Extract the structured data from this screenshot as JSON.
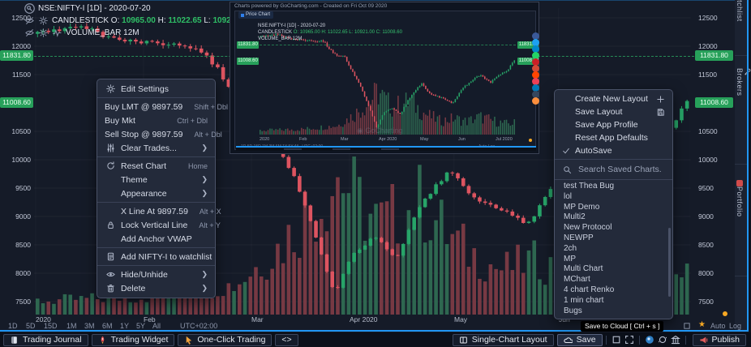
{
  "colors": {
    "accent": "#2196f3",
    "green_tag": "#27a05a",
    "candle_up": "#27a468",
    "candle_down": "#dd5460",
    "vol_up": "#2f6b52",
    "vol_down": "#7c3b44",
    "orange": "#f7a823"
  },
  "legend": {
    "symbol_line": "NSE:NIFTY-I [1D] - 2020-07-20",
    "study1_parts": [
      [
        "CANDLESTICK",
        "w"
      ],
      [
        "O:",
        "l"
      ],
      [
        "10965.00",
        "g"
      ],
      [
        "H:",
        "l"
      ],
      [
        "11022.65",
        "g"
      ],
      [
        "L:",
        "l"
      ],
      [
        "10921.00",
        "g"
      ],
      [
        "C:",
        "l"
      ],
      [
        "11008.60",
        "g"
      ]
    ],
    "study2": "VOLUME_BAR 12M"
  },
  "axis": {
    "ticks": [
      {
        "label": "12500",
        "price": 12500
      },
      {
        "label": "12000",
        "price": 12000
      },
      {
        "label": "11500",
        "price": 11500
      },
      {
        "label": "10500",
        "price": 10500
      },
      {
        "label": "10000",
        "price": 10000
      },
      {
        "label": "9500",
        "price": 9500
      },
      {
        "label": "9000",
        "price": 9000
      },
      {
        "label": "8500",
        "price": 8500
      },
      {
        "label": "8000",
        "price": 8000
      },
      {
        "label": "7500",
        "price": 7500
      }
    ],
    "tags": [
      {
        "label": "11831.80",
        "price": 11831.8
      },
      {
        "label": "11008.60",
        "price": 11008.6
      }
    ]
  },
  "x_axis": [
    {
      "label": "2020",
      "f": 0.0
    },
    {
      "label": "Feb",
      "f": 0.165
    },
    {
      "label": "Mar",
      "f": 0.33
    },
    {
      "label": "Apr 2020",
      "f": 0.48
    },
    {
      "label": "May",
      "f": 0.64
    },
    {
      "label": "Jun",
      "f": 0.8
    }
  ],
  "series": {
    "anchors": [
      [
        0,
        12180
      ],
      [
        8,
        12370
      ],
      [
        16,
        12100
      ],
      [
        20,
        12080
      ],
      [
        30,
        12000
      ],
      [
        36,
        11300
      ],
      [
        40,
        11250
      ],
      [
        44,
        10400
      ],
      [
        48,
        9600
      ],
      [
        52,
        8500
      ],
      [
        55,
        7610
      ],
      [
        58,
        8300
      ],
      [
        62,
        8650
      ],
      [
        66,
        8250
      ],
      [
        70,
        9100
      ],
      [
        76,
        9850
      ],
      [
        80,
        9300
      ],
      [
        85,
        9150
      ],
      [
        90,
        8850
      ],
      [
        95,
        9600
      ],
      [
        100,
        10100
      ],
      [
        104,
        10250
      ],
      [
        108,
        9900
      ],
      [
        112,
        10300
      ],
      [
        116,
        10550
      ],
      [
        119,
        11008.6
      ]
    ],
    "volume_anchors": [
      [
        0,
        18
      ],
      [
        20,
        24
      ],
      [
        36,
        40
      ],
      [
        44,
        90
      ],
      [
        50,
        140
      ],
      [
        55,
        190
      ],
      [
        58,
        150
      ],
      [
        62,
        120
      ],
      [
        66,
        135
      ],
      [
        70,
        150
      ],
      [
        74,
        110
      ],
      [
        78,
        85
      ],
      [
        84,
        60
      ],
      [
        90,
        72
      ],
      [
        96,
        58
      ],
      [
        102,
        78
      ],
      [
        108,
        62
      ],
      [
        114,
        48
      ],
      [
        119,
        52
      ]
    ],
    "count": 120
  },
  "footer": {
    "ranges": [
      "1D",
      "5D",
      "15D",
      "1M",
      "3M",
      "6M",
      "1Y",
      "5Y",
      "All"
    ],
    "timezone": "UTC+02:00",
    "auto_label": "Auto",
    "log_label": "Log",
    "star": "★"
  },
  "context_menu": {
    "sections": [
      [
        {
          "icon": "gear",
          "label": "Edit Settings"
        }
      ],
      [
        {
          "label": "Buy LMT @ 9897.59",
          "shortcut": "Shift + Dbl"
        },
        {
          "label": "Buy Mkt",
          "shortcut": "Ctrl + Dbl"
        },
        {
          "label": "Sell Stop @ 9897.59",
          "shortcut": "Alt + Dbl"
        },
        {
          "icon": "sliders",
          "label": "Clear Trades...",
          "submenu": true
        }
      ],
      [
        {
          "icon": "refresh",
          "label": "Reset Chart",
          "shortcut": "Home"
        },
        {
          "label": "Theme",
          "submenu": true,
          "indent": true
        },
        {
          "label": "Appearance",
          "submenu": true,
          "indent": true
        }
      ],
      [
        {
          "label": "X Line At 9897.59",
          "shortcut": "Alt + X",
          "indent": true
        },
        {
          "icon": "lock",
          "label": "Lock Vertical Line",
          "shortcut": "Alt + Y"
        },
        {
          "label": "Add Anchor VWAP",
          "indent": true
        }
      ],
      [
        {
          "icon": "fileplus",
          "label": "Add NIFTY-I to watchlist"
        }
      ],
      [
        {
          "icon": "eye",
          "label": "Hide/Unhide",
          "submenu": true
        },
        {
          "icon": "trash",
          "label": "Delete",
          "submenu": true
        }
      ]
    ]
  },
  "layout_menu": {
    "items": [
      {
        "label": "Create New Layout",
        "right": "plus"
      },
      {
        "label": "Save Layout",
        "right": "floppy"
      },
      {
        "label": "Save App Profile"
      },
      {
        "label": "Reset App Defaults"
      },
      {
        "label": "AutoSave",
        "check": true
      }
    ],
    "search_placeholder": "Search Saved Charts.",
    "saved_charts": [
      "test Thea Bug",
      "lol",
      "MP Demo",
      "Multi2",
      "New Protocol",
      "NEWPP",
      "2ch",
      "MP",
      "Multi Chart",
      "MChart",
      "4 chart Renko",
      "1 min chart",
      "Bugs"
    ]
  },
  "popup": {
    "title": "Charts powered by GoCharting.com - Created on Fri Oct 09 2020",
    "tab_label": "Price Chart",
    "legend_line1": "NSE:NIFTY-I [1D] - 2020-07-20",
    "legend_line2_w": "CANDLESTICK",
    "legend_line2_g": "O: 10965.00  H: 11022.65  L: 10921.00  C: 11008.60",
    "legend_line3": "VOLUME_BAR 12M",
    "watermark": "◉ GoCharting",
    "months": [
      {
        "label": "2020",
        "f": 0.0
      },
      {
        "label": "Feb",
        "f": 0.155
      },
      {
        "label": "Mar",
        "f": 0.315
      },
      {
        "label": "Apr 2020",
        "f": 0.465
      },
      {
        "label": "May",
        "f": 0.625
      },
      {
        "label": "Jun",
        "f": 0.775
      },
      {
        "label": "Jul 2020",
        "f": 0.92
      }
    ],
    "tags": [
      {
        "label": "11831.80"
      },
      {
        "label": "11008.60"
      }
    ],
    "mini_ranges": "1D  5D  15D  1M  3M  6M  1Y  5Y  All",
    "mini_tz": "UTC+02:00",
    "mini_auto_log": "Auto   Log"
  },
  "share_icons": [
    {
      "name": "facebook",
      "color": "#3b5998"
    },
    {
      "name": "twitter",
      "color": "#1da1f2"
    },
    {
      "name": "telegram",
      "color": "#0088cc"
    },
    {
      "name": "whatsapp",
      "color": "#25d366"
    },
    {
      "name": "pinterest",
      "color": "#cb2027"
    },
    {
      "name": "google-plus",
      "color": "#d34836"
    },
    {
      "name": "reddit",
      "color": "#ff4500"
    },
    {
      "name": "pocket",
      "color": "#ee4056"
    },
    {
      "name": "linkedin",
      "color": "#0077b5"
    },
    {
      "name": "tumblr",
      "color": "#35465c"
    },
    {
      "name": "blogger",
      "color": "#fb8f3d"
    }
  ],
  "sidebar": {
    "tabs": [
      {
        "label": "Watchlist",
        "icon": "none"
      },
      {
        "label": "Brokers",
        "icon": "wrench"
      },
      {
        "label": "Portfolio",
        "icon": "portfolio"
      }
    ]
  },
  "bottom_bar": {
    "left": [
      {
        "icon": "journal",
        "label": "Trading Journal"
      },
      {
        "icon": "rocket",
        "label": "Trading Widget"
      },
      {
        "icon": "pointer",
        "label": "One-Click Trading"
      },
      {
        "label": "<>"
      }
    ],
    "right_chip1": "Single-Chart Layout",
    "save_label": "Save",
    "publish_label": "Publish"
  },
  "tooltip": "Save to Cloud [ Ctrl + s ]"
}
